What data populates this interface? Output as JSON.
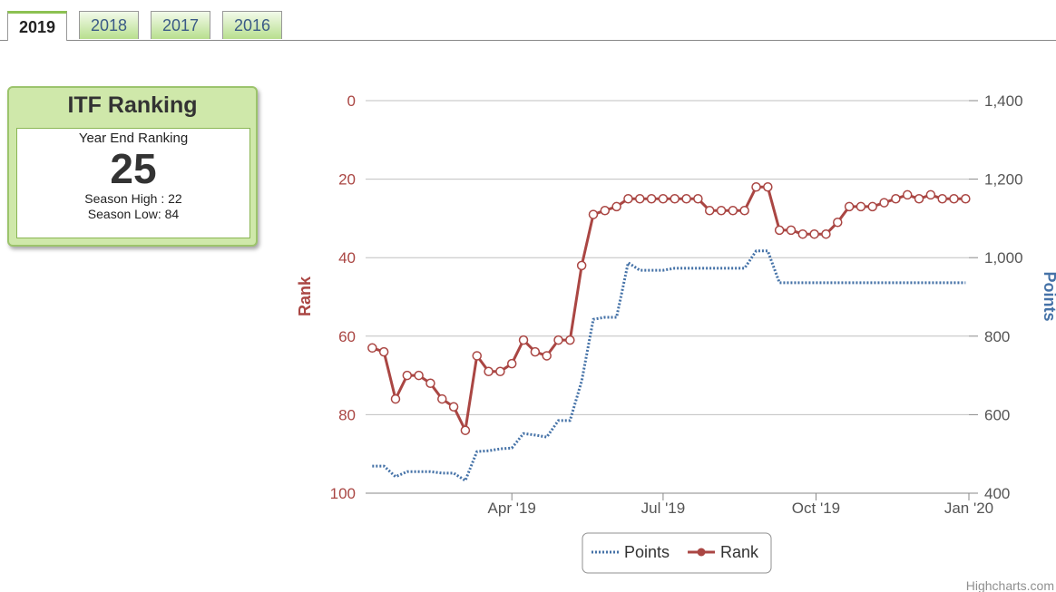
{
  "tabs": [
    "2019",
    "2018",
    "2017",
    "2016"
  ],
  "ranking_box": {
    "title": "ITF Ranking",
    "subtitle": "Year End Ranking",
    "value": 25,
    "season_high": "Season High : 22",
    "season_low": "Season Low: 84"
  },
  "chart_data": {
    "type": "line",
    "x": [
      "2019-01-07",
      "2019-01-14",
      "2019-01-21",
      "2019-01-28",
      "2019-02-04",
      "2019-02-11",
      "2019-02-18",
      "2019-02-25",
      "2019-03-04",
      "2019-03-11",
      "2019-03-18",
      "2019-03-25",
      "2019-04-01",
      "2019-04-08",
      "2019-04-15",
      "2019-04-22",
      "2019-04-29",
      "2019-05-06",
      "2019-05-13",
      "2019-05-20",
      "2019-05-27",
      "2019-06-03",
      "2019-06-10",
      "2019-06-17",
      "2019-06-24",
      "2019-07-01",
      "2019-07-08",
      "2019-07-15",
      "2019-07-22",
      "2019-07-29",
      "2019-08-05",
      "2019-08-12",
      "2019-08-19",
      "2019-08-26",
      "2019-09-02",
      "2019-09-09",
      "2019-09-16",
      "2019-09-23",
      "2019-09-30",
      "2019-10-07",
      "2019-10-14",
      "2019-10-21",
      "2019-10-28",
      "2019-11-04",
      "2019-11-11",
      "2019-11-18",
      "2019-11-25",
      "2019-12-02",
      "2019-12-09",
      "2019-12-16",
      "2019-12-23",
      "2019-12-30"
    ],
    "xlim": [
      "2019-01-03",
      "2020-01-01"
    ],
    "xticks": [
      {
        "value": "2019-04-01",
        "label": "Apr '19"
      },
      {
        "value": "2019-07-01",
        "label": "Jul '19"
      },
      {
        "value": "2019-10-01",
        "label": "Oct '19"
      },
      {
        "value": "2020-01-01",
        "label": "Jan '20"
      }
    ],
    "series": [
      {
        "name": "Points",
        "color": "#4572a7",
        "axis": "y2",
        "dash": "dotted",
        "values": [
          469,
          469,
          442,
          455,
          455,
          455,
          451,
          451,
          432,
          506,
          508,
          513,
          515,
          552,
          548,
          543,
          585,
          585,
          686,
          843,
          848,
          848,
          987,
          968,
          968,
          968,
          973,
          973,
          973,
          973,
          973,
          973,
          973,
          1017,
          1017,
          936,
          936,
          936,
          936,
          936,
          936,
          936,
          936,
          936,
          936,
          936,
          936,
          936,
          936,
          936,
          936,
          936
        ]
      },
      {
        "name": "Rank",
        "color": "#aa4643",
        "marker": true,
        "values": [
          63,
          64,
          76,
          70,
          70,
          72,
          76,
          78,
          84,
          65,
          69,
          69,
          67,
          61,
          64,
          65,
          61,
          61,
          42,
          29,
          28,
          27,
          25,
          25,
          25,
          25,
          25,
          25,
          25,
          28,
          28,
          28,
          28,
          22,
          22,
          33,
          33,
          34,
          34,
          34,
          31,
          27,
          27,
          27,
          26,
          25,
          24,
          25,
          24,
          25,
          25,
          25
        ]
      }
    ],
    "ylabel": "Rank",
    "ylim": [
      0,
      100
    ],
    "yreversed": true,
    "yticks": [
      0,
      20,
      40,
      60,
      80,
      100
    ],
    "y2label": "Points",
    "y2lim": [
      400,
      1400
    ],
    "y2ticks": [
      400,
      600,
      800,
      {
        "value": 1000,
        "label": "1,000"
      },
      {
        "value": 1200,
        "label": "1,200"
      },
      {
        "value": 1400,
        "label": "1,400"
      }
    ],
    "grid": true,
    "legend": "bottom",
    "credits": "Highcharts.com"
  }
}
